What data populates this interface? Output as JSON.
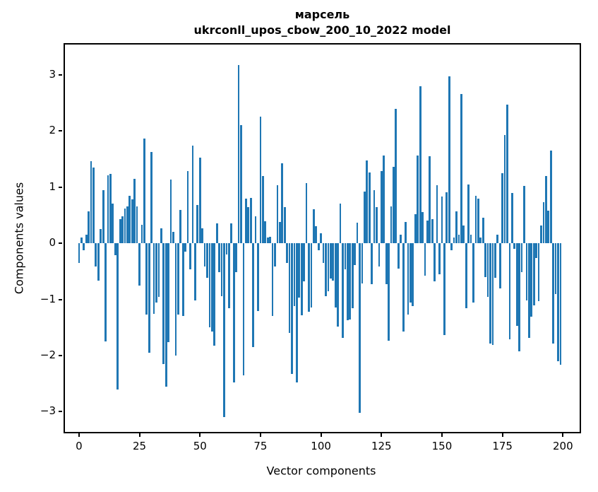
{
  "chart_data": {
    "type": "bar",
    "title_line1": "марсель",
    "title_line2": "ukrconll_upos_cbow_200_10_2022 model",
    "xlabel": "Vector components",
    "ylabel": "Components values",
    "bar_color": "#1f77b4",
    "spine_color": "#000000",
    "background": "#ffffff",
    "n_components": 200,
    "xtick_values": [
      0,
      25,
      50,
      75,
      100,
      125,
      150,
      175,
      200
    ],
    "xtick_labels": [
      "0",
      "25",
      "50",
      "75",
      "100",
      "125",
      "150",
      "175",
      "200"
    ],
    "ytick_values": [
      3,
      2,
      1,
      0,
      -1,
      -2,
      -3
    ],
    "ytick_labels": [
      "3",
      "2",
      "1",
      "0",
      "−1",
      "−2",
      "−3"
    ],
    "xlim": [
      -5.8,
      206.9
    ],
    "ylim": [
      -3.36,
      3.54
    ],
    "grid": false,
    "legend": null,
    "values": [
      -0.35,
      0.1,
      -0.12,
      0.15,
      0.57,
      1.46,
      1.35,
      -0.42,
      -0.66,
      0.25,
      0.94,
      -1.75,
      1.21,
      1.23,
      0.71,
      -0.21,
      -2.6,
      0.43,
      0.48,
      0.62,
      0.66,
      0.84,
      0.78,
      1.15,
      0.66,
      -0.75,
      0.33,
      1.86,
      -1.27,
      -1.95,
      1.62,
      -1.26,
      -1.06,
      -0.95,
      0.26,
      -2.15,
      -2.55,
      -1.76,
      1.13,
      0.2,
      -2.0,
      -1.27,
      0.59,
      -1.29,
      -0.15,
      1.29,
      -0.47,
      1.74,
      -1.02,
      0.68,
      1.53,
      0.26,
      -0.42,
      -0.62,
      -1.5,
      -1.57,
      -1.82,
      0.36,
      -0.52,
      -0.94,
      -3.1,
      -0.2,
      -1.16,
      0.35,
      -2.48,
      -0.52,
      3.17,
      2.1,
      -2.35,
      0.8,
      0.64,
      0.81,
      -1.85,
      0.48,
      -1.21,
      2.26,
      1.2,
      0.39,
      0.1,
      0.12,
      -1.29,
      -0.42,
      1.03,
      0.38,
      1.42,
      0.64,
      -0.35,
      -1.6,
      -2.33,
      -1.12,
      -2.48,
      -0.97,
      -1.28,
      -0.68,
      1.07,
      -1.22,
      -1.14,
      0.6,
      0.3,
      -0.13,
      0.18,
      -0.35,
      -0.94,
      -0.85,
      -0.63,
      -0.66,
      -1.15,
      -1.48,
      0.71,
      -1.68,
      -0.47,
      -1.37,
      -1.36,
      -1.16,
      -0.39,
      0.37,
      -3.02,
      -0.71,
      0.92,
      1.48,
      1.26,
      -0.73,
      0.95,
      0.64,
      -0.42,
      1.29,
      1.56,
      -0.73,
      -1.73,
      0.66,
      1.36,
      2.4,
      -0.45,
      0.15,
      -1.57,
      0.38,
      -1.27,
      -1.05,
      -1.12,
      0.52,
      1.56,
      2.8,
      0.56,
      -0.58,
      0.41,
      1.55,
      0.43,
      -0.68,
      1.03,
      -0.55,
      0.83,
      -1.64,
      0.91,
      2.97,
      -0.12,
      0.1,
      0.57,
      0.15,
      2.66,
      0.32,
      -1.16,
      1.05,
      0.15,
      -1.06,
      0.85,
      0.8,
      0.1,
      0.45,
      -0.6,
      -0.95,
      -1.78,
      -1.81,
      -0.62,
      0.15,
      -0.8,
      1.25,
      1.93,
      2.47,
      -1.71,
      0.89,
      -0.1,
      -1.47,
      -1.92,
      -0.52,
      1.02,
      -1.02,
      -1.69,
      -1.31,
      -1.1,
      -0.26,
      -1.03,
      0.32,
      0.73,
      1.2,
      0.58,
      1.65,
      -1.79,
      -0.91,
      -2.1,
      -2.17
    ]
  }
}
